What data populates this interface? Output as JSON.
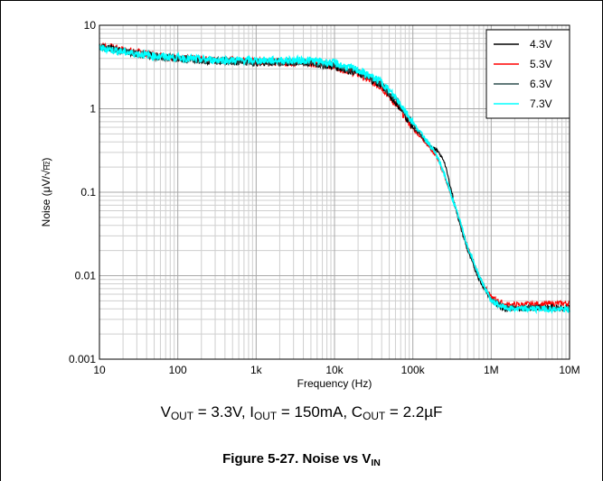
{
  "chart_data": {
    "type": "line",
    "xlabel": "Frequency (Hz)",
    "ylabel_main": "Noise (",
    "ylabel_unit_mu": "μ",
    "ylabel_unit_v": "V/",
    "ylabel_unit_root": "√",
    "ylabel_unit_hz": "Hz",
    "ylabel_close": ")",
    "xscale": "log",
    "yscale": "log",
    "xlim": [
      10,
      10000000
    ],
    "ylim": [
      0.001,
      10
    ],
    "grid": true,
    "legend_position": "top-right",
    "x_ticks": [
      10,
      100,
      1000,
      10000,
      100000,
      1000000,
      10000000
    ],
    "x_tick_labels": [
      "10",
      "100",
      "1k",
      "10k",
      "100k",
      "1M",
      "10M"
    ],
    "y_ticks": [
      0.001,
      0.01,
      0.1,
      1,
      10
    ],
    "y_tick_labels": [
      "0.001",
      "0.01",
      "0.1",
      "1",
      "10"
    ],
    "series": [
      {
        "name": "4.3V",
        "color": "#000000",
        "x": [
          10,
          20,
          50,
          100,
          200,
          500,
          1000,
          2000,
          5000,
          10000,
          20000,
          40000,
          70000,
          100000,
          150000,
          200000,
          250000,
          300000,
          400000,
          500000,
          700000,
          1000000,
          1500000,
          2000000,
          5000000,
          10000000
        ],
        "y": [
          5.6,
          4.9,
          4.3,
          4.0,
          3.8,
          3.7,
          3.6,
          3.6,
          3.5,
          3.2,
          2.7,
          1.9,
          1.0,
          0.6,
          0.4,
          0.32,
          0.24,
          0.12,
          0.04,
          0.02,
          0.009,
          0.005,
          0.004,
          0.004,
          0.0042,
          0.0041
        ]
      },
      {
        "name": "5.3V",
        "color": "#ff0000",
        "x": [
          10,
          20,
          50,
          100,
          200,
          500,
          1000,
          2000,
          5000,
          10000,
          20000,
          40000,
          70000,
          100000,
          150000,
          200000,
          250000,
          300000,
          400000,
          500000,
          700000,
          1000000,
          1500000,
          2000000,
          5000000,
          10000000
        ],
        "y": [
          5.8,
          5.1,
          4.4,
          4.1,
          3.9,
          3.8,
          3.7,
          3.6,
          3.5,
          3.2,
          2.6,
          1.8,
          0.95,
          0.58,
          0.38,
          0.27,
          0.16,
          0.1,
          0.045,
          0.022,
          0.01,
          0.0055,
          0.0045,
          0.0045,
          0.0046,
          0.0047
        ]
      },
      {
        "name": "6.3V",
        "color": "#2f4f4f",
        "x": [
          10,
          20,
          50,
          100,
          200,
          500,
          1000,
          2000,
          5000,
          10000,
          20000,
          40000,
          70000,
          100000,
          150000,
          200000,
          250000,
          300000,
          400000,
          500000,
          700000,
          1000000,
          1500000,
          2000000,
          5000000,
          10000000
        ],
        "y": [
          5.5,
          4.8,
          4.2,
          4.0,
          3.8,
          3.7,
          3.6,
          3.6,
          3.6,
          3.3,
          2.8,
          2.0,
          1.1,
          0.65,
          0.4,
          0.28,
          0.17,
          0.1,
          0.045,
          0.022,
          0.01,
          0.0052,
          0.0042,
          0.0041,
          0.0041,
          0.004
        ]
      },
      {
        "name": "7.3V",
        "color": "#00ffff",
        "x": [
          10,
          20,
          50,
          100,
          200,
          500,
          1000,
          2000,
          5000,
          10000,
          20000,
          40000,
          70000,
          100000,
          150000,
          200000,
          250000,
          300000,
          400000,
          500000,
          700000,
          1000000,
          1500000,
          2000000,
          5000000,
          10000000
        ],
        "y": [
          5.4,
          4.8,
          4.3,
          4.1,
          3.9,
          3.8,
          3.8,
          3.8,
          3.8,
          3.5,
          2.9,
          2.1,
          1.15,
          0.68,
          0.42,
          0.28,
          0.17,
          0.1,
          0.045,
          0.022,
          0.01,
          0.005,
          0.0041,
          0.004,
          0.004,
          0.0039
        ]
      }
    ]
  },
  "caption": {
    "cond_v": "V",
    "cond_v_sub": "OUT",
    "cond_v_val": " = 3.3V, I",
    "cond_i_sub": "OUT",
    "cond_i_val": " = 150mA, C",
    "cond_c_sub": "OUT",
    "cond_c_val": " = 2.2µF",
    "fig_text": "Figure 5-27. Noise vs V",
    "fig_sub": "IN"
  }
}
